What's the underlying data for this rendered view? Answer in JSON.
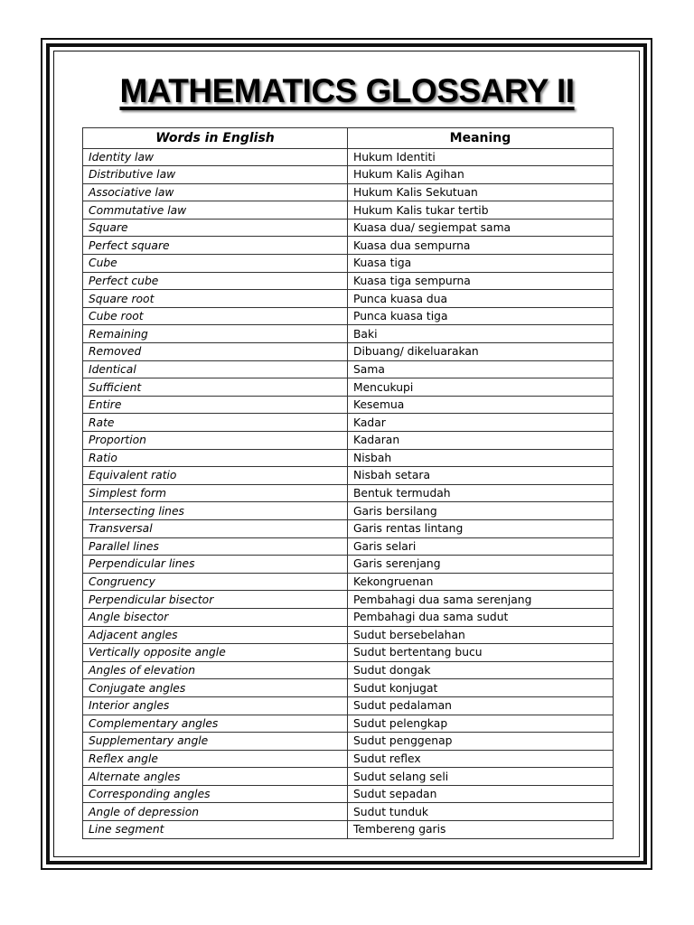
{
  "title": "MATHEMATICS GLOSSARY II",
  "table": {
    "headers": [
      "Words in English",
      "Meaning"
    ],
    "rows": [
      [
        "Identity law",
        "Hukum Identiti"
      ],
      [
        "Distributive law",
        "Hukum Kalis Agihan"
      ],
      [
        "Associative law",
        "Hukum Kalis Sekutuan"
      ],
      [
        "Commutative law",
        "Hukum Kalis tukar tertib"
      ],
      [
        "Square",
        "Kuasa dua/ segiempat sama"
      ],
      [
        "Perfect square",
        "Kuasa dua sempurna"
      ],
      [
        "Cube",
        "Kuasa tiga"
      ],
      [
        "Perfect cube",
        "Kuasa tiga sempurna"
      ],
      [
        "Square root",
        "Punca kuasa dua"
      ],
      [
        "Cube root",
        "Punca kuasa tiga"
      ],
      [
        "Remaining",
        "Baki"
      ],
      [
        "Removed",
        "Dibuang/ dikeluarakan"
      ],
      [
        "Identical",
        "Sama"
      ],
      [
        "Sufficient",
        "Mencukupi"
      ],
      [
        "Entire",
        "Kesemua"
      ],
      [
        "Rate",
        "Kadar"
      ],
      [
        "Proportion",
        "Kadaran"
      ],
      [
        "Ratio",
        "Nisbah"
      ],
      [
        "Equivalent ratio",
        "Nisbah setara"
      ],
      [
        "Simplest form",
        "Bentuk termudah"
      ],
      [
        "Intersecting lines",
        "Garis bersilang"
      ],
      [
        "Transversal",
        "Garis rentas lintang"
      ],
      [
        "Parallel lines",
        "Garis selari"
      ],
      [
        "Perpendicular lines",
        "Garis serenjang"
      ],
      [
        "Congruency",
        "Kekongruenan"
      ],
      [
        "Perpendicular bisector",
        "Pembahagi dua sama serenjang"
      ],
      [
        "Angle bisector",
        "Pembahagi dua sama sudut"
      ],
      [
        "Adjacent angles",
        "Sudut bersebelahan"
      ],
      [
        "Vertically opposite angle",
        "Sudut bertentang bucu"
      ],
      [
        "Angles of elevation",
        "Sudut dongak"
      ],
      [
        "Conjugate angles",
        "Sudut konjugat"
      ],
      [
        "Interior angles",
        "Sudut pedalaman"
      ],
      [
        "Complementary angles",
        "Sudut pelengkap"
      ],
      [
        "Supplementary angle",
        "Sudut penggenap"
      ],
      [
        "Reflex angle",
        "Sudut reflex"
      ],
      [
        "Alternate angles",
        "Sudut selang seli"
      ],
      [
        "Corresponding angles",
        "Sudut sepadan"
      ],
      [
        "Angle of depression",
        "Sudut tunduk"
      ],
      [
        "Line segment",
        "Tembereng garis"
      ]
    ]
  }
}
